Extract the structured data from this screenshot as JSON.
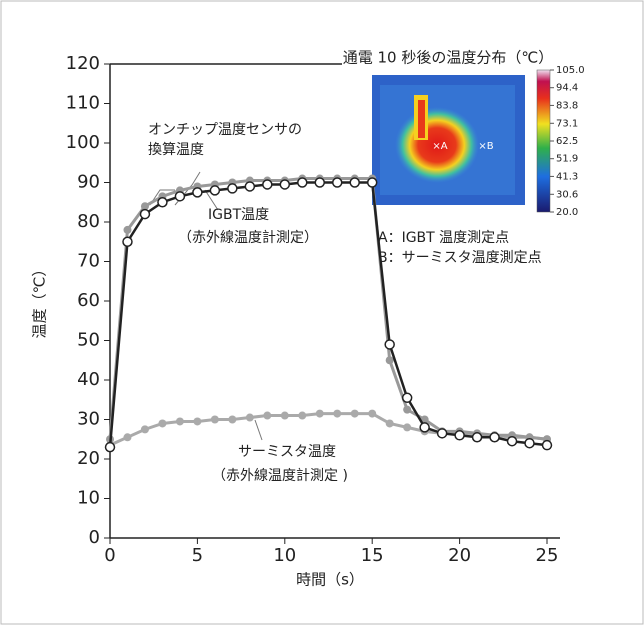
{
  "chart_data": {
    "type": "line",
    "ylabel": "温度（℃）",
    "xlabel": "時間（s）",
    "x": [
      0,
      1,
      2,
      3,
      4,
      5,
      6,
      7,
      8,
      9,
      10,
      11,
      12,
      13,
      14,
      15,
      16,
      17,
      18,
      19,
      20,
      21,
      22,
      23,
      24,
      25
    ],
    "xlim": [
      0,
      25
    ],
    "xticks": [
      0,
      5,
      10,
      15,
      20,
      25
    ],
    "ylim": [
      0,
      120
    ],
    "yticks": [
      0,
      10,
      20,
      30,
      40,
      50,
      60,
      70,
      80,
      90,
      100,
      110,
      120
    ],
    "series": [
      {
        "color": "#999999",
        "values": [
          25,
          78,
          84,
          86.5,
          88,
          89,
          89.5,
          90,
          90.5,
          90.5,
          90.5,
          91,
          91,
          91,
          91,
          91,
          45,
          32.5,
          30,
          27,
          27,
          26.5,
          26,
          26,
          25.5,
          25
        ]
      },
      {
        "color": "#222222",
        "values": [
          23,
          75,
          82,
          85,
          86.5,
          87.5,
          88,
          88.5,
          89,
          89.5,
          89.5,
          90,
          90,
          90,
          90,
          90,
          49,
          35.5,
          28,
          26.5,
          26,
          25.5,
          25.5,
          24.5,
          24,
          23.5
        ]
      },
      {
        "color": "#aaaaaa",
        "values": [
          23.5,
          25.5,
          27.5,
          29,
          29.5,
          29.5,
          30,
          30,
          30.5,
          31,
          31,
          31,
          31.5,
          31.5,
          31.5,
          31.5,
          29,
          28,
          27,
          26.5,
          26.5,
          26,
          26,
          25.5,
          25.5,
          25
        ]
      }
    ],
    "annotations": [
      "オンチップ温度センサの",
      "換算温度",
      "IGBT温度",
      "（赤外線温度計測定）",
      "サーミスタ温度",
      "（赤外線温度計測定 )"
    ],
    "inset": {
      "title": "通電 10 秒後の温度分布（℃）",
      "point_a": "×A",
      "point_b": "×B",
      "legend": [
        "A：IGBT 温度測定点",
        "B：サーミスタ温度測定点"
      ],
      "clim": [
        20,
        105
      ],
      "colorbar_ticks": [
        {
          "value": 105,
          "label": "105.0"
        },
        {
          "value": 94.4,
          "label": "94.4"
        },
        {
          "value": 83.8,
          "label": "83.8"
        },
        {
          "value": 73.1,
          "label": "73.1"
        },
        {
          "value": 62.5,
          "label": "62.5"
        },
        {
          "value": 51.9,
          "label": "51.9"
        },
        {
          "value": 41.3,
          "label": "41.3"
        },
        {
          "value": 30.6,
          "label": "30.6"
        },
        {
          "value": 20,
          "label": "20.0"
        }
      ]
    }
  }
}
